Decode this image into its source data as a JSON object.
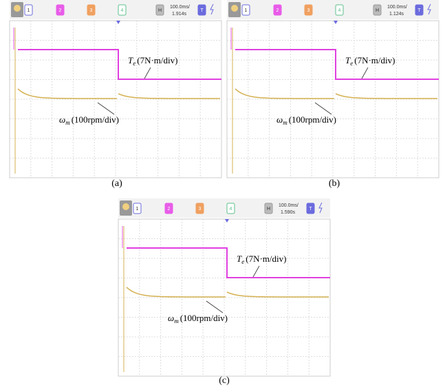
{
  "panels": [
    {
      "caption": "(a)",
      "buttons": [
        "1",
        "2",
        "3",
        "4",
        "H",
        "T"
      ],
      "timebase": "100.0ms/",
      "time": "1.914s",
      "torque_label": {
        "symbol": "T",
        "subscript": "e",
        "unit": "(7N·m/div)"
      },
      "speed_label": {
        "symbol": "ω",
        "subscript": "m",
        "unit": "(100rpm/div)"
      }
    },
    {
      "caption": "(b)",
      "buttons": [
        "1",
        "2",
        "3",
        "4",
        "H",
        "T"
      ],
      "timebase": "100.0ms/",
      "time": "1.124s",
      "torque_label": {
        "symbol": "T",
        "subscript": "e",
        "unit": "(7N·m/div)"
      },
      "speed_label": {
        "symbol": "ω",
        "subscript": "m",
        "unit": "(100rpm/div)"
      }
    },
    {
      "caption": "(c)",
      "buttons": [
        "1",
        "2",
        "3",
        "4",
        "H",
        "T"
      ],
      "timebase": "100.0ms/",
      "time": "1.590s",
      "torque_label": {
        "symbol": "T",
        "subscript": "e",
        "unit": "(7N·m/div)"
      },
      "speed_label": {
        "symbol": "ω",
        "subscript": "m",
        "unit": "(100rpm/div)"
      }
    }
  ]
}
